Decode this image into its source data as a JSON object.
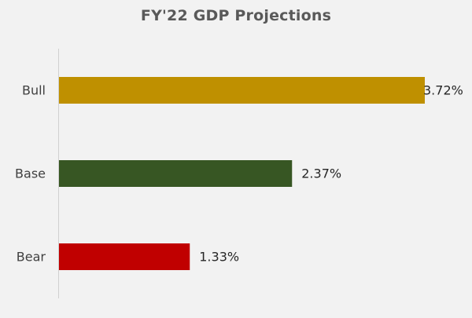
{
  "chart_data": {
    "type": "bar",
    "orientation": "horizontal",
    "title": "FY'22 GDP Projections",
    "categories": [
      "Bull",
      "Base",
      "Bear"
    ],
    "values": [
      3.72,
      2.37,
      1.33
    ],
    "value_labels": [
      "3.72%",
      "2.37%",
      "1.33%"
    ],
    "colors": [
      "#bf9000",
      "#375623",
      "#c00000"
    ],
    "xlim": [
      0,
      3.72
    ],
    "grid": false,
    "legend": "none",
    "xlabel": "",
    "ylabel": ""
  }
}
